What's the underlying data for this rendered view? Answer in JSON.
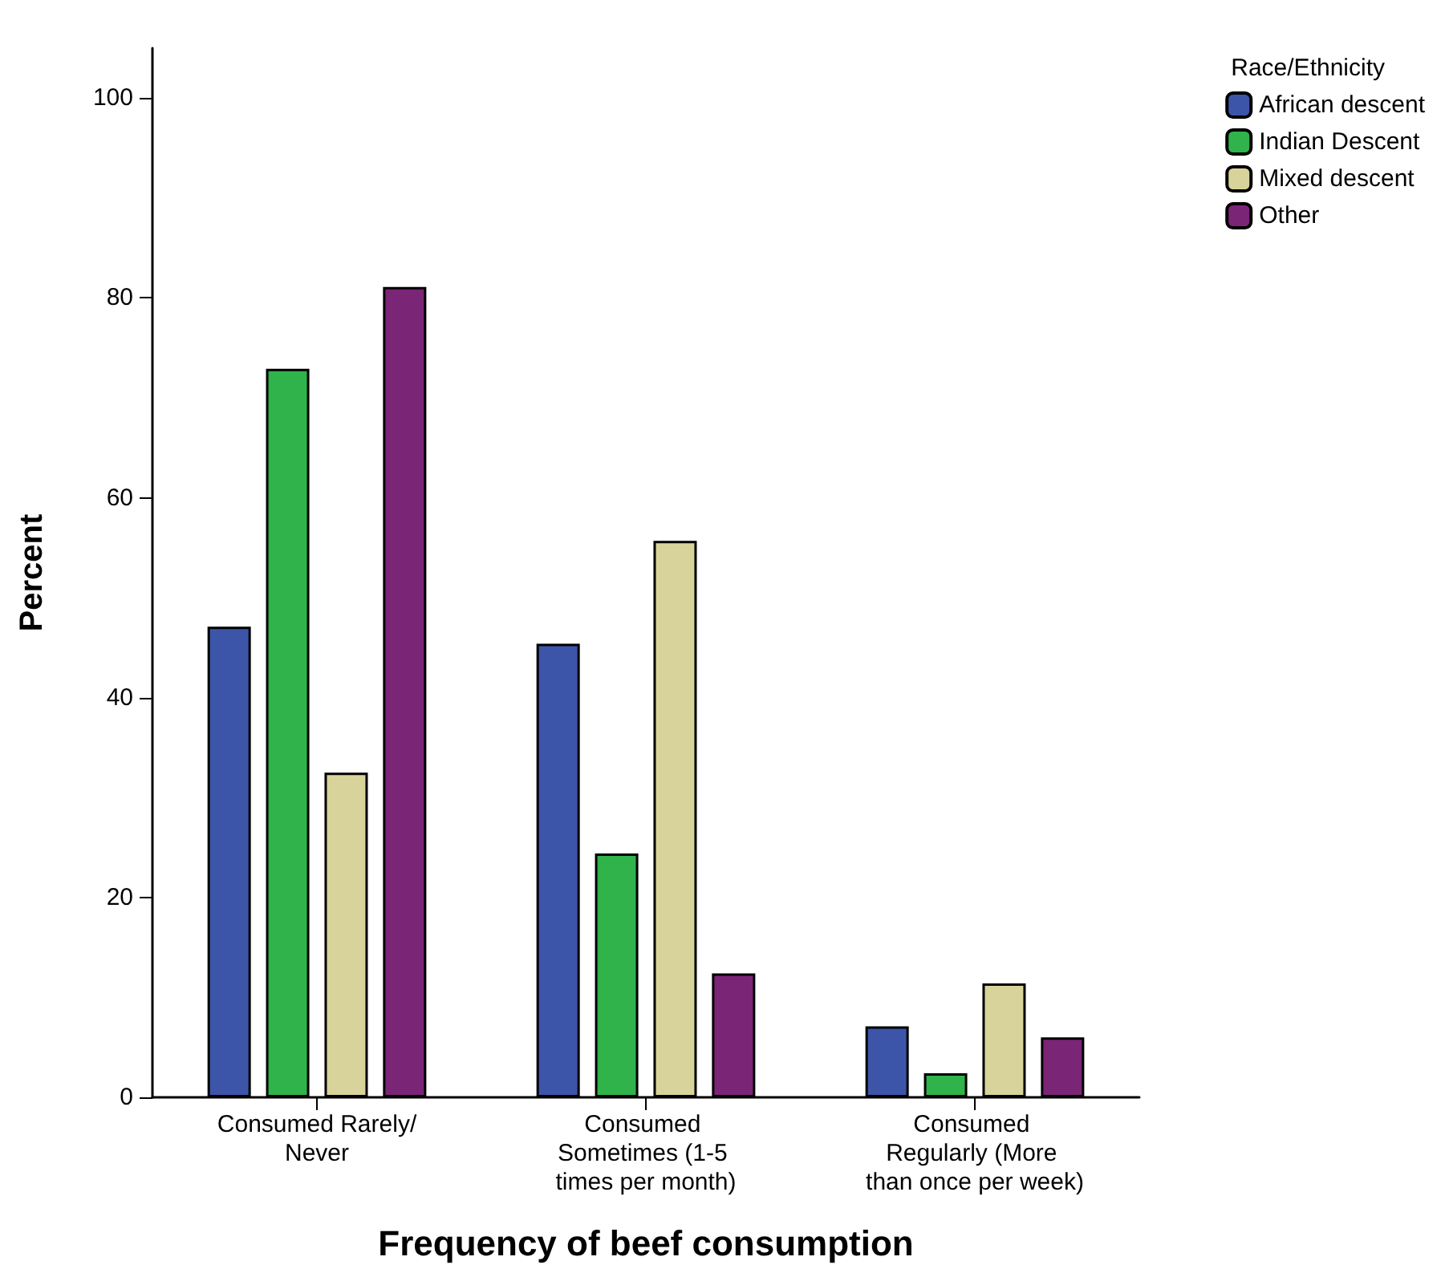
{
  "chart_data": {
    "type": "bar",
    "xlabel": "Frequency of beef consumption",
    "ylabel": "Percent",
    "legend_title": "Race/Ethnicity",
    "categories": [
      "Consumed Rarely/Never",
      "Consumed Sometimes (1-5 times per month)",
      "Consumed Regularly (More than once per week)"
    ],
    "series": [
      {
        "name": "African descent",
        "color": "#3c55a8",
        "values": [
          47.1,
          45.4,
          7.1
        ]
      },
      {
        "name": "Indian Descent",
        "color": "#2fb34a",
        "values": [
          72.9,
          24.4,
          2.4
        ]
      },
      {
        "name": "Mixed descent",
        "color": "#d8d39a",
        "values": [
          32.5,
          55.7,
          11.4
        ]
      },
      {
        "name": "Other",
        "color": "#7b2577",
        "values": [
          81.1,
          12.4,
          6.0
        ]
      }
    ],
    "ylim": [
      0,
      105
    ],
    "yticks": [
      0,
      20,
      40,
      60,
      80,
      100
    ],
    "grid": false,
    "legend": "top right"
  }
}
